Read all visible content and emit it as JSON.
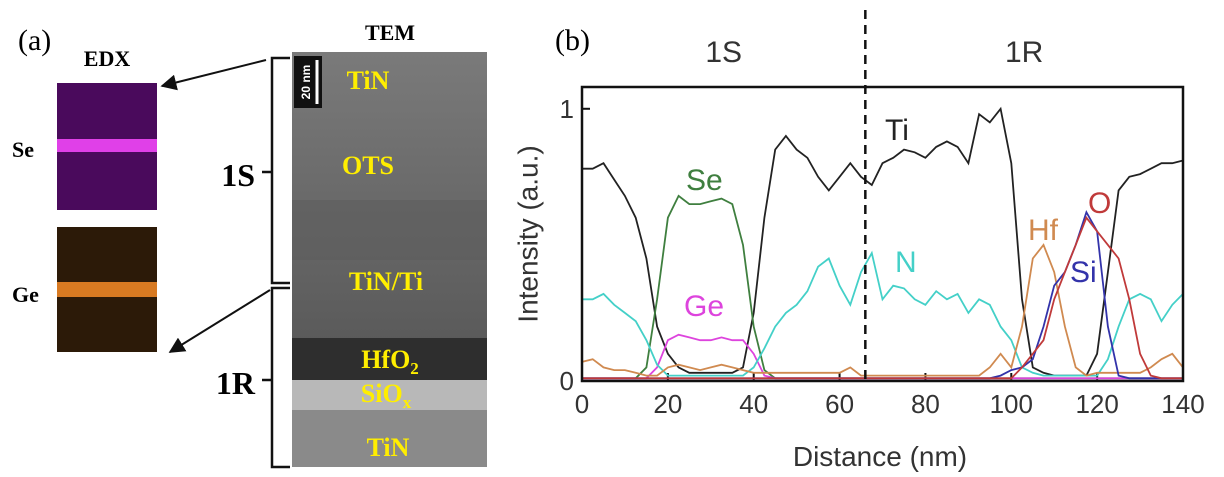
{
  "panel_a": {
    "label": "(a)",
    "edx_title": "EDX",
    "tem_title": "TEM",
    "edx_maps": [
      {
        "label": "Se"
      },
      {
        "label": "Ge"
      }
    ],
    "scale_bar": "20 nm",
    "layers": [
      "TiN",
      "OTS",
      "TiN/Ti",
      {
        "text": "HfO",
        "sub": "2"
      },
      {
        "text": "SiO",
        "sub": "x"
      },
      "TiN"
    ],
    "brackets": [
      "1S",
      "1R"
    ]
  },
  "chart_data": {
    "type": "line",
    "panel_label": "(b)",
    "xlabel": "Distance (nm)",
    "ylabel": "Intensity (a.u.)",
    "regions": [
      "1S",
      "1R"
    ],
    "boundary_x": 66,
    "x": [
      0,
      2.5,
      5,
      7.5,
      10,
      12.5,
      15,
      17.5,
      20,
      22.5,
      25,
      27.5,
      30,
      32.5,
      35,
      37.5,
      40,
      42.5,
      45,
      47.5,
      50,
      52.5,
      55,
      57.5,
      60,
      62.5,
      65,
      67.5,
      70,
      72.5,
      75,
      77.5,
      80,
      82.5,
      85,
      87.5,
      90,
      92.5,
      95,
      97.5,
      100,
      102.5,
      105,
      107.5,
      110,
      112.5,
      115,
      117.5,
      120,
      122.5,
      125,
      127.5,
      130,
      132.5,
      135,
      137.5,
      140
    ],
    "series": [
      {
        "name": "Ti",
        "color": "#222222",
        "values": [
          0.78,
          0.78,
          0.8,
          0.74,
          0.68,
          0.6,
          0.45,
          0.2,
          0.1,
          0.05,
          0.03,
          0.03,
          0.03,
          0.03,
          0.03,
          0.05,
          0.25,
          0.6,
          0.85,
          0.9,
          0.85,
          0.82,
          0.75,
          0.7,
          0.75,
          0.8,
          0.75,
          0.72,
          0.8,
          0.82,
          0.85,
          0.84,
          0.82,
          0.86,
          0.88,
          0.86,
          0.8,
          0.98,
          0.95,
          1.0,
          0.8,
          0.3,
          0.05,
          0.03,
          0.02,
          0.02,
          0.02,
          0.02,
          0.1,
          0.4,
          0.7,
          0.75,
          0.76,
          0.78,
          0.8,
          0.8,
          0.81
        ]
      },
      {
        "name": "Se",
        "color": "#3f7f3f",
        "values": [
          0.01,
          0.01,
          0.01,
          0.01,
          0.01,
          0.01,
          0.05,
          0.3,
          0.6,
          0.68,
          0.65,
          0.65,
          0.66,
          0.67,
          0.65,
          0.5,
          0.2,
          0.04,
          0.01,
          0.01,
          0.01,
          0.01,
          0.01,
          0.01,
          0.01,
          0.01,
          0.01,
          0.01,
          0.01,
          0.01,
          0.01,
          0.01,
          0.01,
          0.01,
          0.01,
          0.01,
          0.01,
          0.01,
          0.01,
          0.01,
          0.01,
          0.01,
          0.01,
          0.01,
          0.01,
          0.01,
          0.01,
          0.01,
          0.01,
          0.01,
          0.01,
          0.01,
          0.01,
          0.01,
          0.01,
          0.01,
          0.01
        ]
      },
      {
        "name": "Ge",
        "color": "#dd44dd",
        "values": [
          0.01,
          0.01,
          0.01,
          0.01,
          0.01,
          0.01,
          0.01,
          0.05,
          0.15,
          0.17,
          0.16,
          0.15,
          0.15,
          0.16,
          0.15,
          0.15,
          0.1,
          0.02,
          0.01,
          0.01,
          0.01,
          0.01,
          0.01,
          0.01,
          0.01,
          0.01,
          0.01,
          0.01,
          0.01,
          0.01,
          0.01,
          0.01,
          0.01,
          0.01,
          0.01,
          0.01,
          0.01,
          0.01,
          0.01,
          0.01,
          0.01,
          0.01,
          0.01,
          0.01,
          0.01,
          0.01,
          0.01,
          0.01,
          0.01,
          0.01,
          0.01,
          0.01,
          0.01,
          0.01,
          0.01,
          0.01,
          0.01
        ]
      },
      {
        "name": "N",
        "color": "#44d0c8",
        "values": [
          0.3,
          0.3,
          0.32,
          0.28,
          0.25,
          0.22,
          0.15,
          0.06,
          0.02,
          0.02,
          0.02,
          0.02,
          0.02,
          0.02,
          0.02,
          0.02,
          0.05,
          0.12,
          0.2,
          0.25,
          0.28,
          0.33,
          0.42,
          0.45,
          0.35,
          0.28,
          0.4,
          0.47,
          0.3,
          0.35,
          0.34,
          0.3,
          0.28,
          0.33,
          0.3,
          0.32,
          0.25,
          0.3,
          0.28,
          0.2,
          0.15,
          0.05,
          0.03,
          0.02,
          0.02,
          0.02,
          0.02,
          0.02,
          0.02,
          0.08,
          0.2,
          0.3,
          0.32,
          0.3,
          0.22,
          0.28,
          0.32
        ]
      },
      {
        "name": "Hf",
        "color": "#d08a50",
        "values": [
          0.07,
          0.08,
          0.05,
          0.04,
          0.04,
          0.03,
          0.02,
          0.02,
          0.05,
          0.06,
          0.05,
          0.04,
          0.05,
          0.06,
          0.05,
          0.04,
          0.03,
          0.03,
          0.03,
          0.03,
          0.03,
          0.03,
          0.03,
          0.03,
          0.03,
          0.05,
          0.02,
          0.02,
          0.02,
          0.02,
          0.02,
          0.02,
          0.02,
          0.02,
          0.02,
          0.02,
          0.02,
          0.02,
          0.05,
          0.1,
          0.05,
          0.2,
          0.45,
          0.5,
          0.4,
          0.2,
          0.05,
          0.02,
          0.03,
          0.03,
          0.03,
          0.03,
          0.03,
          0.05,
          0.08,
          0.1,
          0.05
        ]
      },
      {
        "name": "Si",
        "color": "#3333aa",
        "values": [
          0.01,
          0.01,
          0.01,
          0.01,
          0.01,
          0.01,
          0.01,
          0.01,
          0.01,
          0.01,
          0.01,
          0.01,
          0.01,
          0.01,
          0.01,
          0.01,
          0.01,
          0.01,
          0.01,
          0.01,
          0.01,
          0.01,
          0.01,
          0.01,
          0.01,
          0.01,
          0.01,
          0.01,
          0.01,
          0.01,
          0.01,
          0.01,
          0.01,
          0.01,
          0.01,
          0.01,
          0.01,
          0.01,
          0.01,
          0.02,
          0.04,
          0.05,
          0.08,
          0.2,
          0.35,
          0.4,
          0.5,
          0.62,
          0.55,
          0.2,
          0.02,
          0.01,
          0.01,
          0.01,
          0.01,
          0.01,
          0.01
        ]
      },
      {
        "name": "O",
        "color": "#c03a3a",
        "values": [
          0.01,
          0.01,
          0.01,
          0.01,
          0.01,
          0.01,
          0.01,
          0.01,
          0.01,
          0.01,
          0.01,
          0.01,
          0.01,
          0.01,
          0.01,
          0.01,
          0.01,
          0.01,
          0.01,
          0.01,
          0.01,
          0.01,
          0.01,
          0.01,
          0.01,
          0.01,
          0.01,
          0.01,
          0.01,
          0.01,
          0.01,
          0.01,
          0.01,
          0.01,
          0.01,
          0.01,
          0.01,
          0.01,
          0.01,
          0.01,
          0.01,
          0.05,
          0.1,
          0.15,
          0.3,
          0.4,
          0.5,
          0.6,
          0.55,
          0.5,
          0.45,
          0.3,
          0.1,
          0.02,
          0.01,
          0.01,
          0.01
        ]
      }
    ],
    "xlim": [
      0,
      140
    ],
    "ylim": [
      0,
      1.08
    ],
    "xticks": [
      0,
      20,
      40,
      60,
      80,
      100,
      120,
      140
    ],
    "yticks": [
      0,
      1
    ]
  }
}
